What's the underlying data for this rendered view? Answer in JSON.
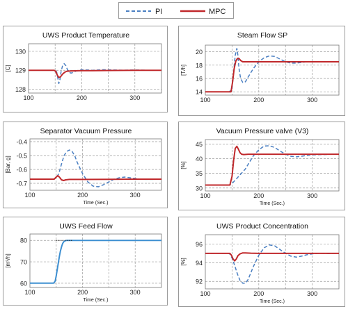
{
  "legend": {
    "pi_label": "PI",
    "mpc_label": "MPC"
  },
  "colors": {
    "pi": "#4a7fc2",
    "mpc": "#c0282b",
    "grid": "#9a9a9a",
    "feed": "#3d8fd1"
  },
  "chart_data": [
    {
      "type": "line",
      "title": "UWS Product Temperature",
      "xlabel": "",
      "ylabel": "[C]",
      "xlim": [
        100,
        350
      ],
      "ylim": [
        127.8,
        130.4
      ],
      "xticks": [
        100,
        200,
        300
      ],
      "yticks": [
        128,
        129,
        130
      ],
      "grid": true,
      "series": [
        {
          "name": "PI",
          "style": "dashed",
          "x": [
            100,
            148,
            151,
            153,
            155,
            157,
            159,
            161,
            164,
            167,
            170,
            173,
            176,
            180,
            185,
            190,
            200,
            210,
            220,
            240,
            260,
            280,
            300,
            320,
            340,
            350
          ],
          "y": [
            129,
            129,
            129,
            128.9,
            128.6,
            128.3,
            128.5,
            128.9,
            129.25,
            129.35,
            129.25,
            129.05,
            128.9,
            128.85,
            128.9,
            128.97,
            129.03,
            129.02,
            129.0,
            129.03,
            129.02,
            129.0,
            129.02,
            129.0,
            129.0,
            129.0
          ]
        },
        {
          "name": "MPC",
          "style": "solid",
          "x": [
            100,
            148,
            151,
            154,
            157,
            160,
            164,
            168,
            172,
            180,
            200,
            220,
            250,
            300,
            350
          ],
          "y": [
            129,
            129,
            128.95,
            128.75,
            128.62,
            128.65,
            128.8,
            128.9,
            128.95,
            128.97,
            128.98,
            128.98,
            128.99,
            129.0,
            129.0
          ]
        }
      ]
    },
    {
      "type": "line",
      "title": "Steam Flow SP",
      "xlabel": "",
      "ylabel": "[T/h]",
      "xlim": [
        100,
        350
      ],
      "ylim": [
        13.5,
        21
      ],
      "xticks": [
        100,
        200,
        300
      ],
      "yticks": [
        14,
        16,
        18,
        20
      ],
      "grid": true,
      "series": [
        {
          "name": "PI",
          "style": "dashed",
          "x": [
            100,
            145,
            150,
            153,
            156,
            159,
            161,
            163,
            166,
            170,
            175,
            180,
            190,
            200,
            210,
            220,
            230,
            240,
            250,
            260,
            270,
            280,
            290,
            300,
            320,
            340,
            350
          ],
          "y": [
            14,
            14,
            14.5,
            17,
            19.5,
            20.5,
            19.5,
            17.5,
            16,
            15.4,
            15.5,
            16.2,
            17.5,
            18.5,
            19.1,
            19.4,
            19.3,
            18.9,
            18.5,
            18.3,
            18.3,
            18.4,
            18.5,
            18.5,
            18.5,
            18.5,
            18.5
          ]
        },
        {
          "name": "MPC",
          "style": "solid",
          "x": [
            100,
            148,
            151,
            154,
            157,
            160,
            163,
            166,
            170,
            180,
            200,
            250,
            300,
            350
          ],
          "y": [
            14,
            14,
            15.5,
            17.5,
            18.6,
            19,
            19,
            18.7,
            18.5,
            18.5,
            18.5,
            18.5,
            18.5,
            18.5
          ]
        }
      ]
    },
    {
      "type": "line",
      "title": "Separator Vacuum Pressure",
      "xlabel": "Time (Sec.)",
      "ylabel": "[Bar, g]",
      "xlim": [
        100,
        350
      ],
      "ylim": [
        -0.75,
        -0.38
      ],
      "xticks": [
        100,
        200,
        300
      ],
      "yticks": [
        -0.4,
        -0.5,
        -0.6,
        -0.7
      ],
      "grid": true,
      "series": [
        {
          "name": "PI",
          "style": "dashed",
          "x": [
            100,
            145,
            150,
            155,
            160,
            165,
            170,
            175,
            180,
            185,
            190,
            200,
            210,
            220,
            230,
            240,
            250,
            260,
            270,
            280,
            290,
            300,
            310,
            320,
            330,
            340,
            350
          ],
          "y": [
            -0.67,
            -0.67,
            -0.66,
            -0.63,
            -0.56,
            -0.5,
            -0.47,
            -0.46,
            -0.47,
            -0.5,
            -0.55,
            -0.63,
            -0.69,
            -0.72,
            -0.725,
            -0.71,
            -0.69,
            -0.67,
            -0.66,
            -0.655,
            -0.66,
            -0.665,
            -0.67,
            -0.672,
            -0.672,
            -0.671,
            -0.67
          ]
        },
        {
          "name": "MPC",
          "style": "solid",
          "x": [
            100,
            146,
            150,
            153,
            156,
            160,
            164,
            168,
            175,
            200,
            250,
            300,
            350
          ],
          "y": [
            -0.67,
            -0.67,
            -0.655,
            -0.645,
            -0.655,
            -0.675,
            -0.68,
            -0.675,
            -0.672,
            -0.672,
            -0.671,
            -0.67,
            -0.67
          ]
        }
      ]
    },
    {
      "type": "line",
      "title": "Vacuum Pressure valve (V3)",
      "xlabel": "Time (Sec.)",
      "ylabel": "[%]",
      "xlim": [
        100,
        350
      ],
      "ylim": [
        29,
        46.5
      ],
      "xticks": [
        100,
        200,
        300
      ],
      "yticks": [
        30,
        35,
        40,
        45
      ],
      "grid": true,
      "series": [
        {
          "name": "PI",
          "style": "dashed",
          "x": [
            100,
            145,
            150,
            155,
            160,
            165,
            170,
            175,
            180,
            190,
            200,
            210,
            220,
            230,
            240,
            250,
            260,
            270,
            280,
            290,
            300,
            320,
            340,
            350
          ],
          "y": [
            31,
            31,
            31.5,
            32.5,
            33.5,
            34.5,
            35.5,
            36.5,
            38,
            41,
            43,
            44.3,
            44.4,
            43.8,
            42.6,
            41.5,
            40.8,
            40.6,
            40.8,
            41.1,
            41.3,
            41.4,
            41.5,
            41.5
          ]
        },
        {
          "name": "MPC",
          "style": "solid",
          "x": [
            100,
            146,
            150,
            153,
            156,
            159,
            162,
            165,
            168,
            172,
            180,
            200,
            250,
            300,
            350
          ],
          "y": [
            31,
            31,
            34,
            39.5,
            43.5,
            44.2,
            43.2,
            42,
            41.5,
            41.4,
            41.5,
            41.5,
            41.5,
            41.5,
            41.5
          ]
        }
      ]
    },
    {
      "type": "line",
      "title": "UWS Feed Flow",
      "xlabel": "Time (Sec.)",
      "ylabel": "[m³/h]",
      "xlim": [
        100,
        350
      ],
      "ylim": [
        58,
        83
      ],
      "xticks": [
        100,
        200,
        300
      ],
      "yticks": [
        60,
        70,
        80
      ],
      "grid": true,
      "series": [
        {
          "x": [
            100,
            145,
            148,
            150,
            152,
            154,
            156,
            158,
            160,
            162,
            164,
            166,
            168,
            170,
            172,
            175,
            180,
            200,
            350
          ],
          "y": [
            60,
            60,
            61,
            63.5,
            66.5,
            69.5,
            72.5,
            75,
            77,
            78.5,
            79.3,
            79.7,
            79.9,
            80,
            80,
            80,
            80,
            80,
            80
          ]
        },
        {
          "style": "dotted",
          "x": [
            150,
            180
          ],
          "y": [
            80,
            80
          ]
        }
      ]
    },
    {
      "type": "line",
      "title": "UWS Product Concentration",
      "xlabel": "Time (Sec.)",
      "ylabel": "[%]",
      "xlim": [
        100,
        350
      ],
      "ylim": [
        91.2,
        97
      ],
      "xticks": [
        100,
        200,
        300
      ],
      "yticks": [
        92,
        94,
        96
      ],
      "grid": true,
      "series": [
        {
          "name": "PI",
          "style": "dashed",
          "x": [
            100,
            145,
            150,
            155,
            160,
            165,
            170,
            175,
            180,
            185,
            190,
            200,
            210,
            220,
            230,
            240,
            250,
            260,
            270,
            280,
            290,
            300,
            310,
            320,
            330,
            340,
            350
          ],
          "y": [
            95,
            95,
            94.5,
            93.7,
            92.8,
            92.1,
            91.8,
            91.8,
            92.2,
            92.9,
            93.6,
            94.8,
            95.6,
            95.9,
            95.8,
            95.4,
            95,
            94.7,
            94.6,
            94.7,
            94.85,
            94.95,
            95,
            95,
            94.98,
            95,
            95
          ]
        },
        {
          "name": "MPC",
          "style": "solid",
          "x": [
            100,
            146,
            149,
            152,
            155,
            158,
            161,
            165,
            170,
            175,
            185,
            200,
            250,
            300,
            350
          ],
          "y": [
            95,
            95,
            94.8,
            94.4,
            94.2,
            94.4,
            94.75,
            94.95,
            95.05,
            95.05,
            95.02,
            95,
            95,
            95,
            95
          ]
        }
      ]
    }
  ]
}
